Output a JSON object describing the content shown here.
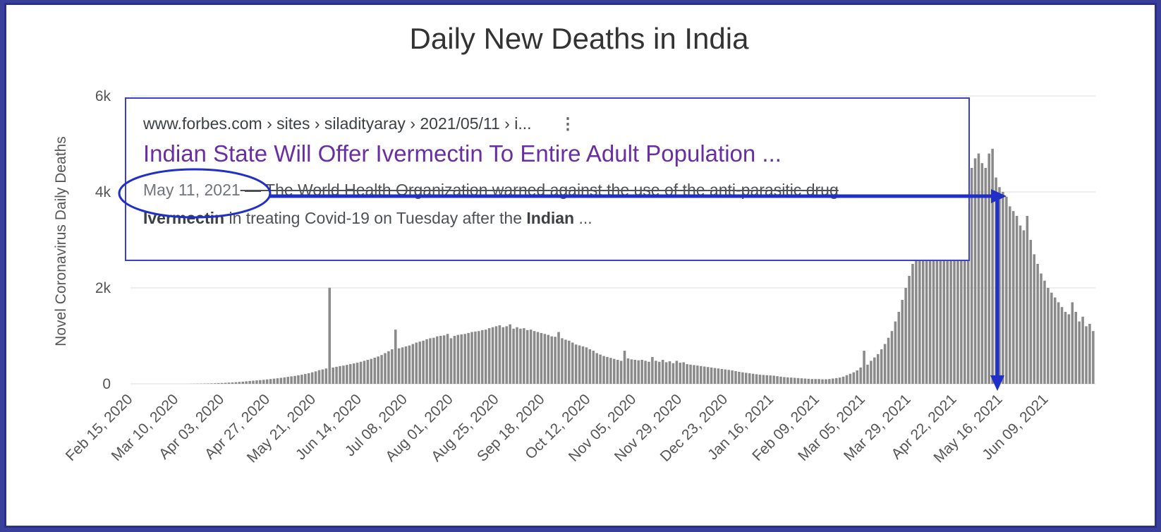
{
  "search_result": {
    "url": "www.forbes.com › sites › siladityaray › 2021/05/11 › i...",
    "more_icon": "vertical-dots-icon",
    "title": "Indian State Will Offer Ivermectin To Entire Adult Population ...",
    "date": "May 11, 2021",
    "snippet_line1_rest": " — The World Health Organization warned against the use of the anti-parasitic drug",
    "snippet_bold1": "Ivermectin",
    "snippet_mid": " in treating Covid-19 on Tuesday after the ",
    "snippet_bold2": "Indian",
    "snippet_end": " ..."
  },
  "annotation_color": "#1f2fc8",
  "chart_data": {
    "type": "bar",
    "title": "Daily New Deaths in India",
    "ylabel": "Novel Coronavirus Daily Deaths",
    "xlabel": "",
    "ylim": [
      0,
      6000
    ],
    "yticks": [
      0,
      2000,
      4000,
      6000
    ],
    "ytick_labels": [
      "0",
      "2k",
      "4k",
      "6k"
    ],
    "x_tick_labels": [
      "Feb 15, 2020",
      "Mar 10, 2020",
      "Apr 03, 2020",
      "Apr 27, 2020",
      "May 21, 2020",
      "Jun 14, 2020",
      "Jul 08, 2020",
      "Aug 01, 2020",
      "Aug 25, 2020",
      "Sep 18, 2020",
      "Oct 12, 2020",
      "Nov 05, 2020",
      "Nov 29, 2020",
      "Dec 23, 2020",
      "Jan 16, 2021",
      "Feb 09, 2021",
      "Mar 05, 2021",
      "Mar 29, 2021",
      "Apr 22, 2021",
      "May 16, 2021",
      "Jun 09, 2021"
    ],
    "grid": true,
    "bar_color": "#8a8a8a",
    "series": [
      {
        "values": [
          0,
          0,
          0,
          0,
          0,
          0,
          0,
          0,
          0,
          0,
          0,
          0,
          0,
          0,
          0,
          0,
          1,
          2,
          3,
          4,
          5,
          6,
          8,
          10,
          12,
          15,
          18,
          22,
          26,
          30,
          35,
          40,
          45,
          52,
          60,
          66,
          72,
          78,
          84,
          92,
          100,
          108,
          116,
          125,
          135,
          145,
          155,
          165,
          178,
          190,
          205,
          220,
          240,
          260,
          285,
          300,
          320,
          2003,
          340,
          355,
          370,
          380,
          395,
          410,
          425,
          440,
          460,
          480,
          500,
          520,
          545,
          570,
          600,
          640,
          680,
          720,
          1130,
          740,
          760,
          780,
          800,
          830,
          860,
          880,
          900,
          930,
          950,
          960,
          990,
          1000,
          1010,
          1040,
          950,
          1000,
          1020,
          1030,
          1040,
          1060,
          1080,
          1090,
          1100,
          1120,
          1130,
          1160,
          1180,
          1200,
          1220,
          1180,
          1200,
          1240,
          1150,
          1180,
          1150,
          1160,
          1120,
          1130,
          1100,
          1080,
          1060,
          1040,
          1020,
          990,
          980,
          1080,
          950,
          920,
          900,
          860,
          820,
          800,
          780,
          760,
          720,
          690,
          640,
          610,
          580,
          560,
          540,
          520,
          500,
          480,
          690,
          530,
          510,
          500,
          490,
          500,
          480,
          460,
          560,
          480,
          460,
          500,
          450,
          470,
          430,
          480,
          440,
          450,
          410,
          400,
          390,
          380,
          370,
          360,
          350,
          340,
          330,
          320,
          310,
          300,
          290,
          280,
          265,
          250,
          240,
          230,
          220,
          210,
          200,
          190,
          185,
          180,
          175,
          170,
          160,
          150,
          140,
          135,
          130,
          125,
          120,
          115,
          110,
          105,
          100,
          100,
          100,
          95,
          95,
          100,
          110,
          120,
          130,
          150,
          180,
          210,
          240,
          280,
          340,
          690,
          400,
          480,
          550,
          620,
          720,
          830,
          960,
          1100,
          1300,
          1500,
          1750,
          2000,
          2250,
          2500,
          2750,
          3000,
          3300,
          3500,
          3600,
          3750,
          3900,
          4100,
          4200,
          4300,
          4400,
          4000,
          4200,
          4500,
          4700,
          4600,
          4500,
          4700,
          4800,
          4600,
          4500,
          4800,
          4900,
          4300,
          4100,
          4000,
          3900,
          3700,
          3600,
          3500,
          3300,
          3200,
          3500,
          3000,
          2700,
          2500,
          2300,
          2150,
          2000,
          1900,
          1800,
          1700,
          1600,
          1500,
          1450,
          1700,
          1500,
          1300,
          1400,
          1200,
          1250,
          1100
        ]
      }
    ]
  }
}
